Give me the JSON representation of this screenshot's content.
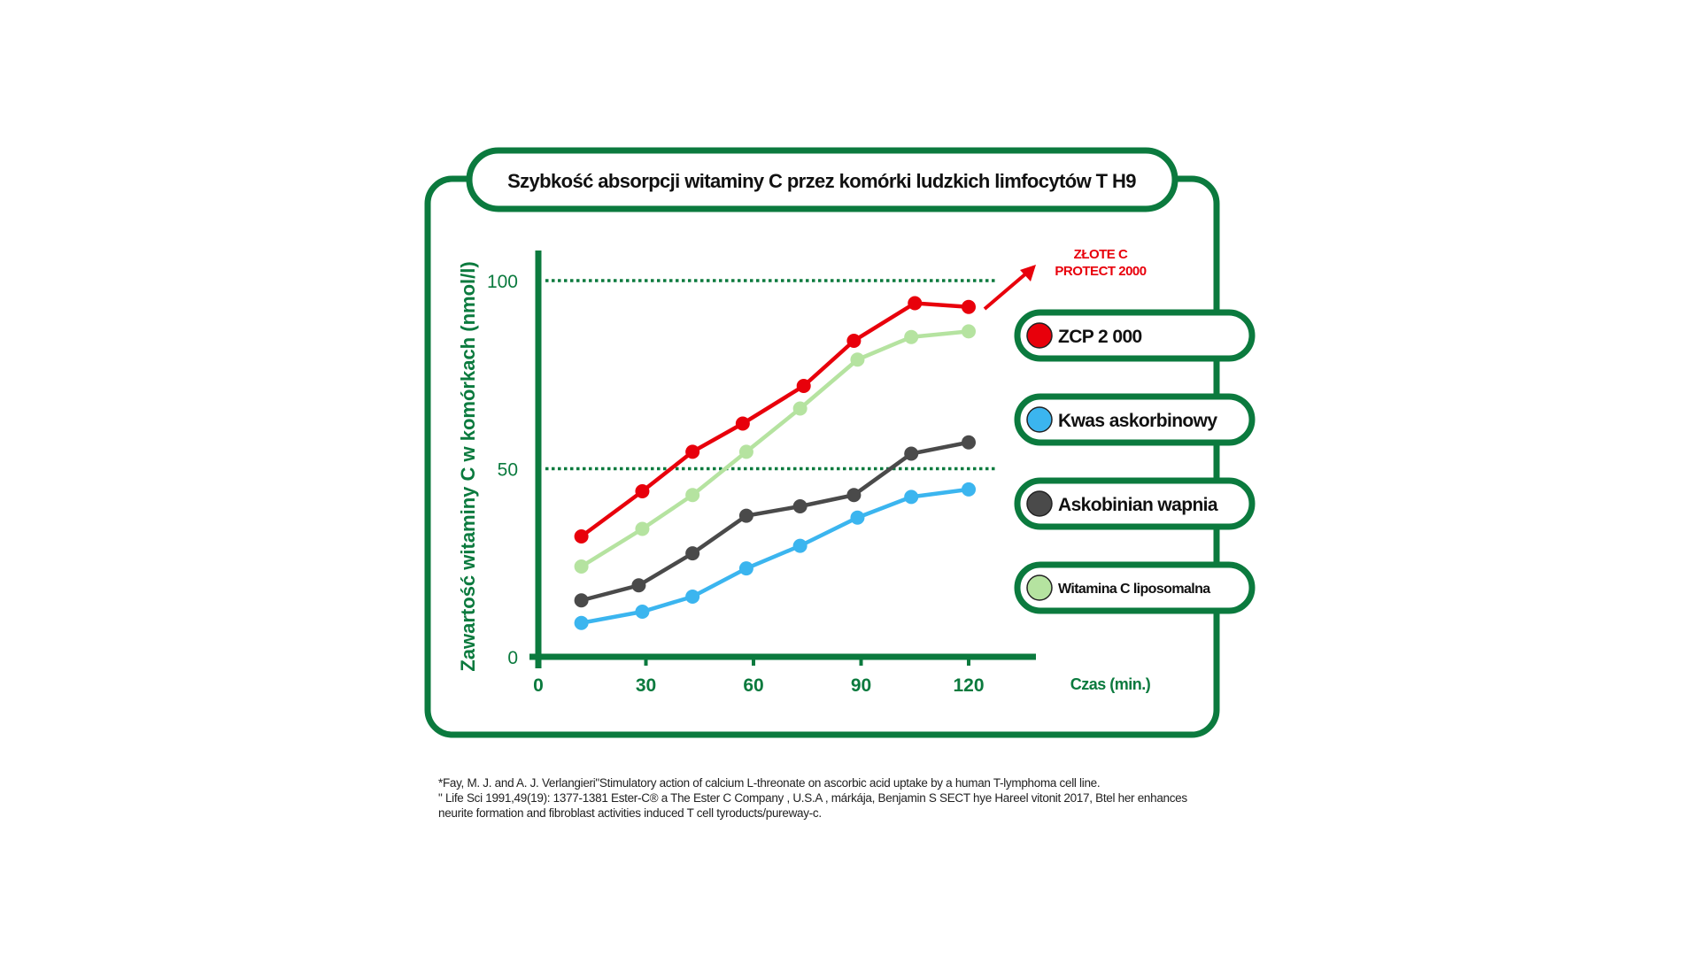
{
  "chart_data": {
    "type": "line",
    "title": "Szybkość absorpcji witaminy C przez komórki ludzkich limfocytów T H9",
    "xlabel": "Czas (min.)",
    "ylabel": "Zawartość witaminy C w komórkach (nmol/l)",
    "xlim": [
      0,
      140
    ],
    "ylim": [
      0,
      100
    ],
    "x_ticks": [
      0,
      30,
      60,
      90,
      120
    ],
    "x_tick_labels": [
      "0",
      "30",
      "60",
      "90",
      "120"
    ],
    "y_ticks": [
      0,
      50,
      100
    ],
    "y_tick_labels": [
      "0",
      "50",
      "100"
    ],
    "reference_lines": [
      50,
      100
    ],
    "legend_position": "right",
    "annotation": {
      "lines": [
        "ZŁOTE C",
        "PROTECT 2000"
      ],
      "color": "#e8000b"
    },
    "series": [
      {
        "name": "ZCP 2 000",
        "color": "#e8000b",
        "x": [
          12,
          29,
          43,
          57,
          74,
          88,
          105,
          120
        ],
        "values": [
          32,
          44,
          54.5,
          62,
          72,
          84,
          94,
          93
        ]
      },
      {
        "name": "Kwas askorbinowy",
        "color": "#3bb5ef",
        "x": [
          12,
          29,
          43,
          58,
          73,
          89,
          104,
          120
        ],
        "values": [
          9,
          12,
          16,
          23.5,
          29.5,
          37,
          42.5,
          44.5
        ]
      },
      {
        "name": "Askobinian wapnia",
        "color": "#4a4a4a",
        "x": [
          12,
          28,
          43,
          58,
          73,
          88,
          104,
          120
        ],
        "values": [
          15,
          19,
          27.5,
          37.5,
          40,
          43,
          54,
          57
        ]
      },
      {
        "name": "Witamina C liposomalna",
        "color": "#b5e3a0",
        "x": [
          12,
          29,
          43,
          58,
          73,
          89,
          104,
          120
        ],
        "values": [
          24,
          34,
          43,
          54.5,
          66,
          79,
          85,
          86.5
        ]
      }
    ]
  },
  "colors": {
    "frame": "#0b7a3e",
    "axis_text": "#0b7a3e"
  },
  "footnotes": [
    "*Fay, M. J. and A. J. Verlangieri\"Stimulatory action of calcium L-threonate on ascorbic acid uptake by a human T-lymphoma cell line.",
    "\" Life Sci 1991,49(19): 1377-1381 Ester-C® a The Ester C Company , U.S.A , márkája, Benjamin S SECT hye Hareel vitonit 2017, Btel her enhances",
    "neurite formation and fibroblast activities induced T cell tyroducts/pureway-c."
  ]
}
